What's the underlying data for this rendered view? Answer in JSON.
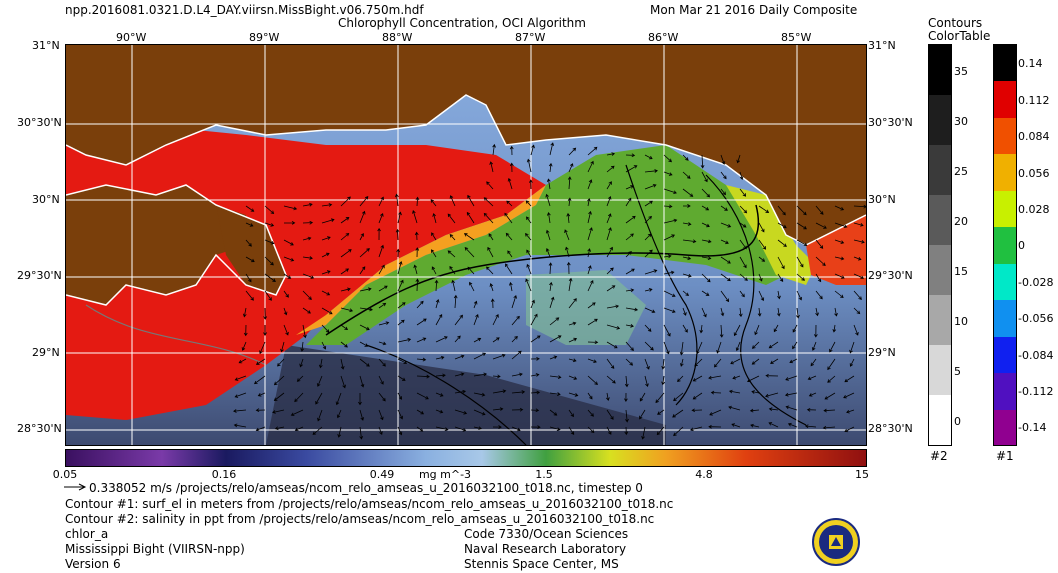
{
  "header": {
    "filename": "npp.2016081.0321.D.L4_DAY.viirsn.MissBight.v06.750m.hdf",
    "product": "Chlorophyll Concentration, OCI Algorithm",
    "date": "Mon Mar 21 2016 Daily Composite"
  },
  "map": {
    "lon_labels": [
      "90°W",
      "89°W",
      "88°W",
      "87°W",
      "86°W",
      "85°W"
    ],
    "lat_labels": [
      "31°N",
      "30°30'N",
      "30°N",
      "29°30'N",
      "29°N",
      "28°30'N"
    ],
    "colors": {
      "land": "#7a3f0b",
      "coast": "#ffffff",
      "grid": "#ffffff"
    }
  },
  "colorbar": {
    "ticks": [
      "0.05",
      "0.16",
      "0.49",
      "1.5",
      "4.8",
      "15"
    ],
    "units": "mg m^-3"
  },
  "contour_tables": {
    "title1": "Contours",
    "title2": "ColorTable",
    "table2": {
      "labels": [
        "35",
        "30",
        "25",
        "20",
        "15",
        "10",
        "5",
        "0"
      ],
      "id": "#2"
    },
    "table1": {
      "labels": [
        "0.14",
        "0.112",
        "0.084",
        "0.056",
        "0.028",
        "0",
        "-0.028",
        "-0.056",
        "-0.084",
        "-0.112",
        "-0.14"
      ],
      "id": "#1"
    }
  },
  "footer": {
    "vector_line": "0.338052 m/s /projects/relo/amseas/ncom_relo_amseas_u_2016032100_t018.nc, timestep 0",
    "contour1": "Contour #1: surf_el in meters from /projects/relo/amseas/ncom_relo_amseas_u_2016032100_t018.nc",
    "contour2": "Contour #2: salinity in ppt from /projects/relo/amseas/ncom_relo_amseas_u_2016032100_t018.nc",
    "variable": "chlor_a",
    "region": "Mississippi Bight (VIIRSN-npp)",
    "version": "Version 6",
    "org_line1": "Code 7330/Ocean Sciences",
    "org_line2": "Naval Research Laboratory",
    "org_line3": "Stennis Space Center, MS"
  }
}
